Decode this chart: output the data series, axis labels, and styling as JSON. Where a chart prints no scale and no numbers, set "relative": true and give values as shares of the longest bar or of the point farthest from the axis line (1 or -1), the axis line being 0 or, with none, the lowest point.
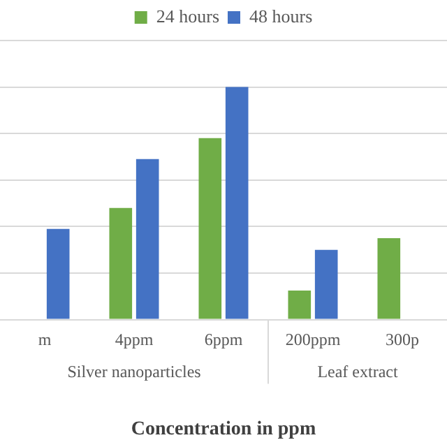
{
  "chart_data": {
    "type": "bar",
    "relative": true,
    "xlabel": "Concentration in ppm",
    "categories": [
      "m",
      "4ppm",
      "6ppm",
      "200ppm",
      "300p"
    ],
    "series": [
      {
        "name": "24 hours",
        "color": "#70ad47",
        "values": [
          null,
          0.48,
          0.78,
          0.125,
          0.35
        ]
      },
      {
        "name": "48 hours",
        "color": "#4472c4",
        "values": [
          0.39,
          0.69,
          1,
          0.3,
          null
        ]
      }
    ],
    "annotations": [
      "Silver nanoparticles",
      "Leaf extract"
    ],
    "grid": "y",
    "legend": "top"
  }
}
